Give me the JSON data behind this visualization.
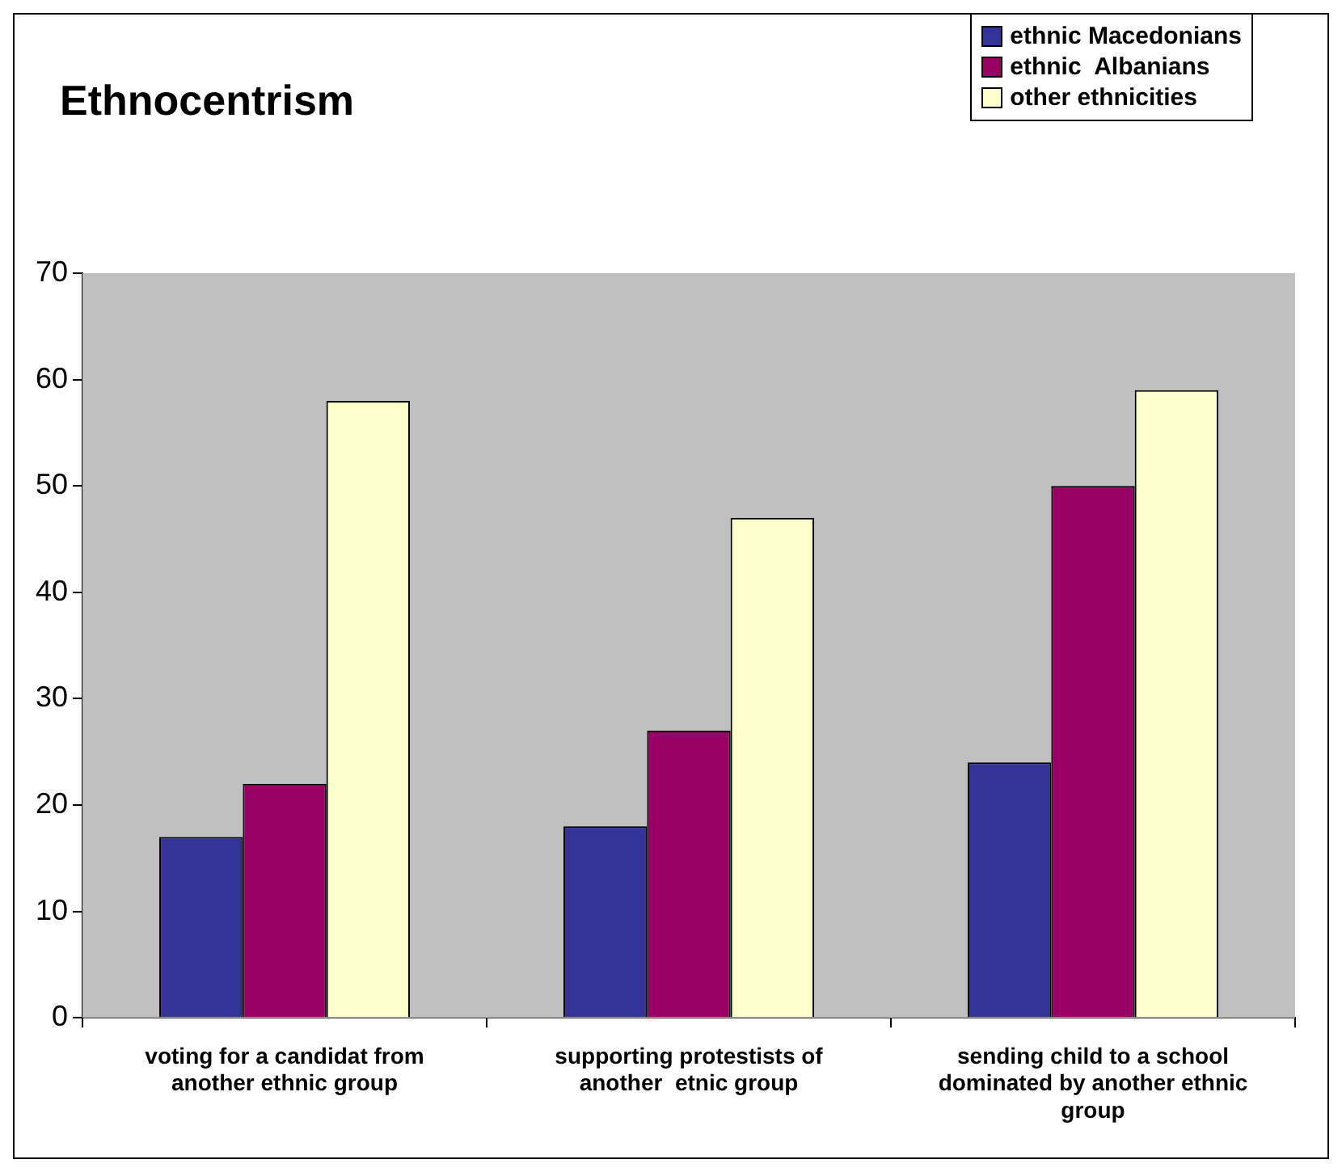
{
  "chart_data": {
    "type": "bar",
    "title": "Ethnocentrism",
    "categories": [
      "voting for a candidat from another ethnic group",
      "supporting protestists of another  etnic group",
      "sending child to a school dominated by another ethnic group"
    ],
    "series": [
      {
        "name": "ethnic Macedonians",
        "color": "#333399",
        "values": [
          17,
          18,
          24
        ]
      },
      {
        "name": "ethnic  Albanians",
        "color": "#990066",
        "values": [
          22,
          27,
          50
        ]
      },
      {
        "name": "other ethnicities",
        "color": "#ffffcc",
        "values": [
          58,
          47,
          59
        ]
      }
    ],
    "ylim": [
      0,
      70
    ],
    "yticks": [
      0,
      10,
      20,
      30,
      40,
      50,
      60,
      70
    ],
    "legend": "top right"
  }
}
